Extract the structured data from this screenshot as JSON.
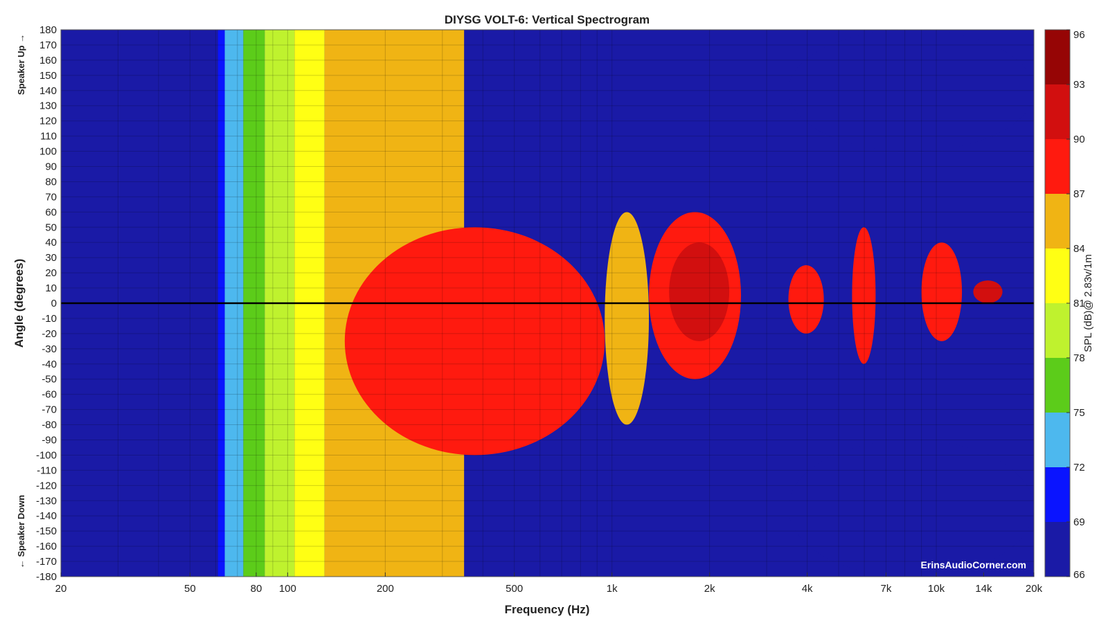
{
  "chart_data": {
    "type": "heatmap",
    "title": "DIYSG VOLT-6: Vertical Spectrogram",
    "xlabel": "Frequency (Hz)",
    "ylabel": "Angle (degrees)",
    "x_scale": "log",
    "xlim": [
      20,
      20000
    ],
    "ylim": [
      -180,
      180
    ],
    "x_ticks": [
      {
        "value": 20,
        "label": "20"
      },
      {
        "value": 50,
        "label": "50"
      },
      {
        "value": 80,
        "label": "80"
      },
      {
        "value": 100,
        "label": "100"
      },
      {
        "value": 200,
        "label": "200"
      },
      {
        "value": 500,
        "label": "500"
      },
      {
        "value": 1000,
        "label": "1k"
      },
      {
        "value": 2000,
        "label": "2k"
      },
      {
        "value": 4000,
        "label": "4k"
      },
      {
        "value": 7000,
        "label": "7k"
      },
      {
        "value": 10000,
        "label": "10k"
      },
      {
        "value": 14000,
        "label": "14k"
      },
      {
        "value": 20000,
        "label": "20k"
      }
    ],
    "y_ticks": [
      180,
      170,
      160,
      150,
      140,
      130,
      120,
      110,
      100,
      90,
      80,
      70,
      60,
      50,
      40,
      30,
      20,
      10,
      0,
      -10,
      -20,
      -30,
      -40,
      -50,
      -60,
      -70,
      -80,
      -90,
      -100,
      -110,
      -120,
      -130,
      -140,
      -150,
      -160,
      -170,
      -180
    ],
    "grid": true,
    "reference_line_angle": 0,
    "side_labels": {
      "top": "Speaker Up →",
      "bottom": "← Speaker Down"
    },
    "colorbar": {
      "label": "SPL (dB)@ 2.83v/1m",
      "ticks": [
        96,
        93,
        90,
        87,
        84,
        81,
        78,
        75,
        72,
        69,
        66
      ],
      "bands": [
        {
          "from": 66,
          "to": 69,
          "color": "#1a1aa6"
        },
        {
          "from": 69,
          "to": 72,
          "color": "#0a14ff"
        },
        {
          "from": 72,
          "to": 75,
          "color": "#4db8ee"
        },
        {
          "from": 75,
          "to": 78,
          "color": "#5ccc1a"
        },
        {
          "from": 78,
          "to": 81,
          "color": "#bff22e"
        },
        {
          "from": 81,
          "to": 84,
          "color": "#ffff14"
        },
        {
          "from": 84,
          "to": 87,
          "color": "#f0b414"
        },
        {
          "from": 87,
          "to": 90,
          "color": "#ff1a0f"
        },
        {
          "from": 90,
          "to": 93,
          "color": "#d20f0f"
        },
        {
          "from": 93,
          "to": 96,
          "color": "#960505"
        }
      ]
    },
    "regions_spl_db": [
      {
        "spl": 67.5,
        "freq": [
          20,
          61
        ],
        "angle": [
          -180,
          180
        ]
      },
      {
        "spl": 70.5,
        "freq": [
          61,
          64
        ],
        "angle": [
          -180,
          180
        ]
      },
      {
        "spl": 73.5,
        "freq": [
          64,
          73
        ],
        "angle": [
          -180,
          180
        ]
      },
      {
        "spl": 76.5,
        "freq": [
          73,
          85
        ],
        "angle": [
          -180,
          180
        ]
      },
      {
        "spl": 79.5,
        "freq": [
          85,
          105
        ],
        "angle": [
          -180,
          180
        ]
      },
      {
        "spl": 82.5,
        "freq": [
          105,
          130
        ],
        "angle": [
          -180,
          180
        ]
      },
      {
        "spl": 85.5,
        "freq": [
          130,
          350
        ],
        "angle": [
          -180,
          180
        ]
      },
      {
        "spl": 88.5,
        "freq": [
          150,
          950
        ],
        "angle": [
          -100,
          50
        ]
      },
      {
        "spl": 85.5,
        "freq": [
          950,
          1300
        ],
        "angle": [
          -80,
          60
        ]
      },
      {
        "spl": 88.5,
        "freq": [
          1300,
          2500
        ],
        "angle": [
          -50,
          60
        ]
      },
      {
        "spl": 91.5,
        "freq": [
          1500,
          2300
        ],
        "angle": [
          -25,
          40
        ]
      },
      {
        "spl": 88.5,
        "freq": [
          3500,
          4500
        ],
        "angle": [
          -20,
          25
        ]
      },
      {
        "spl": 88.5,
        "freq": [
          5500,
          6500
        ],
        "angle": [
          -40,
          50
        ]
      },
      {
        "spl": 88.5,
        "freq": [
          9000,
          12000
        ],
        "angle": [
          -25,
          40
        ]
      },
      {
        "spl": 91.5,
        "freq": [
          13000,
          16000
        ],
        "angle": [
          0,
          15
        ]
      },
      {
        "spl": 67.5,
        "freq": [
          3500,
          20000
        ],
        "angle": [
          100,
          180
        ]
      },
      {
        "spl": 67.5,
        "freq": [
          3500,
          20000
        ],
        "angle": [
          -180,
          -90
        ]
      }
    ]
  },
  "watermark": "ErinsAudioCorner.com"
}
